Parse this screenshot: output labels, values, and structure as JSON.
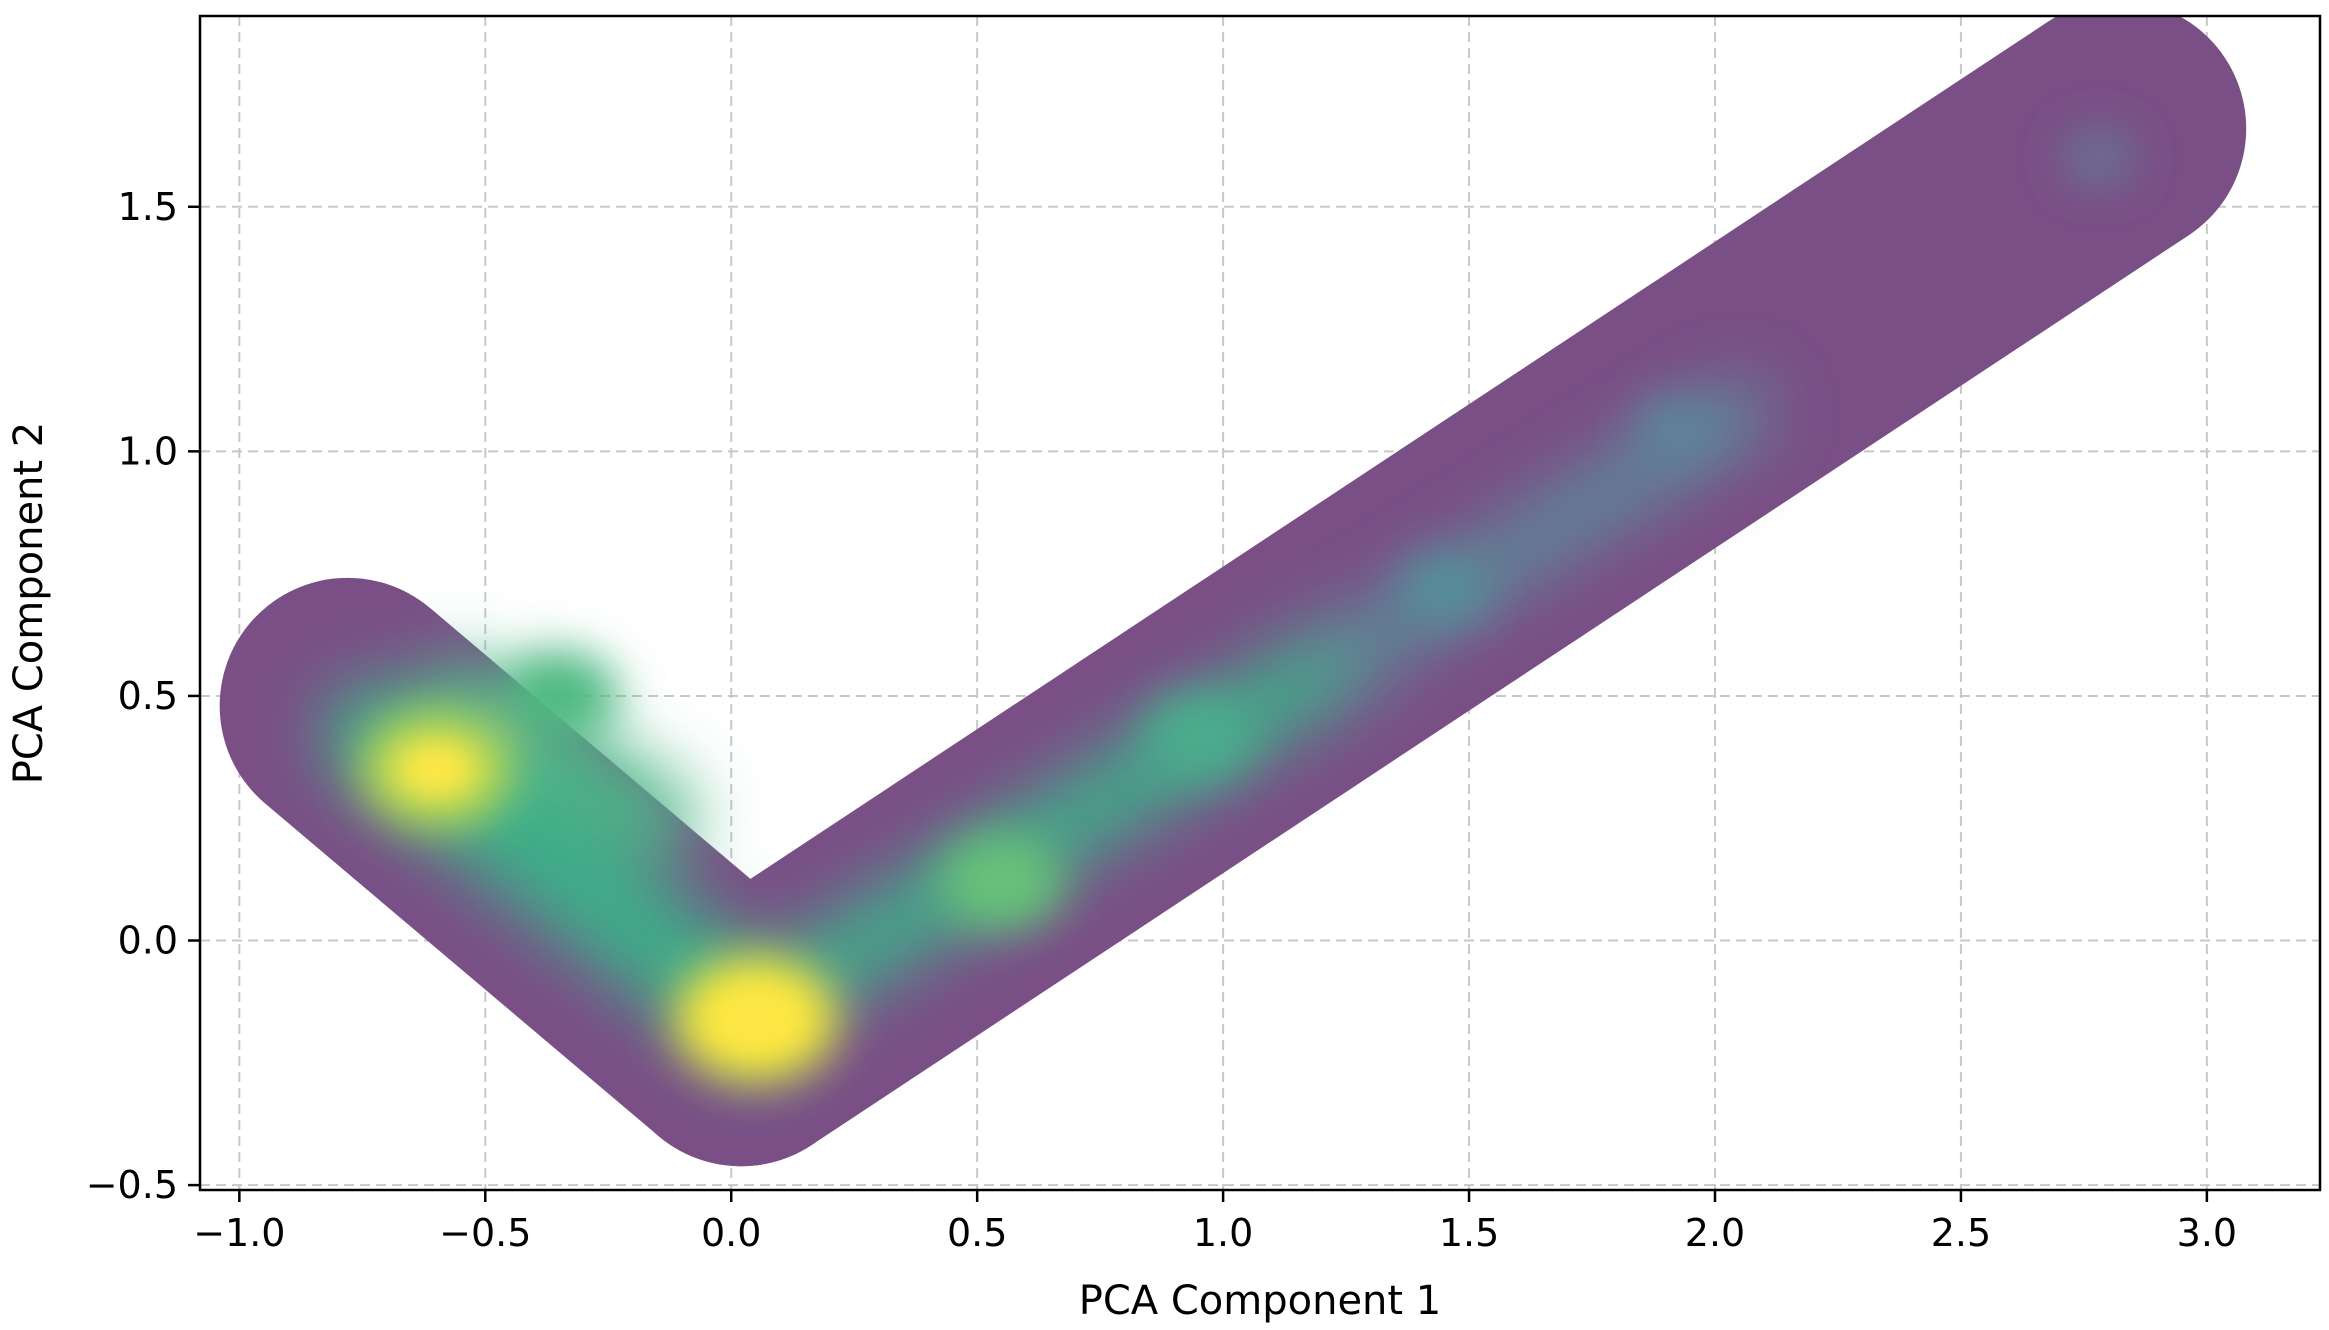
{
  "chart_data": {
    "type": "heatmap",
    "subtype": "kde-density",
    "title": "",
    "xlabel": "PCA Component 1",
    "ylabel": "PCA Component 2",
    "xlim": [
      -1.08,
      3.23
    ],
    "ylim": [
      -0.51,
      1.89
    ],
    "x_ticks": [
      -1.0,
      -0.5,
      0.0,
      0.5,
      1.0,
      1.5,
      2.0,
      2.5,
      3.0
    ],
    "x_tick_labels": [
      "−1.0",
      "−0.5",
      "0.0",
      "0.5",
      "1.0",
      "1.5",
      "2.0",
      "2.5",
      "3.0"
    ],
    "y_ticks": [
      -0.5,
      0.0,
      0.5,
      1.0,
      1.5
    ],
    "y_tick_labels": [
      "−0.5",
      "0.0",
      "0.5",
      "1.0",
      "1.5"
    ],
    "grid": true,
    "colormap": "viridis",
    "support_color": "#7a4f86",
    "density_arms": [
      {
        "from": [
          -0.78,
          0.48
        ],
        "to": [
          0.02,
          -0.2
        ]
      },
      {
        "from": [
          0.02,
          -0.2
        ],
        "to": [
          2.82,
          1.66
        ]
      }
    ],
    "density_peaks": [
      {
        "x": 0.05,
        "y": -0.16,
        "density": 1.0
      },
      {
        "x": -0.6,
        "y": 0.35,
        "density": 0.88
      },
      {
        "x": -0.35,
        "y": 0.5,
        "density": 0.6
      },
      {
        "x": 0.55,
        "y": 0.12,
        "density": 0.65
      },
      {
        "x": 0.95,
        "y": 0.42,
        "density": 0.5
      },
      {
        "x": 1.45,
        "y": 0.72,
        "density": 0.3
      },
      {
        "x": 1.92,
        "y": 1.05,
        "density": 0.22
      },
      {
        "x": 2.78,
        "y": 1.6,
        "density": 0.15
      }
    ]
  }
}
